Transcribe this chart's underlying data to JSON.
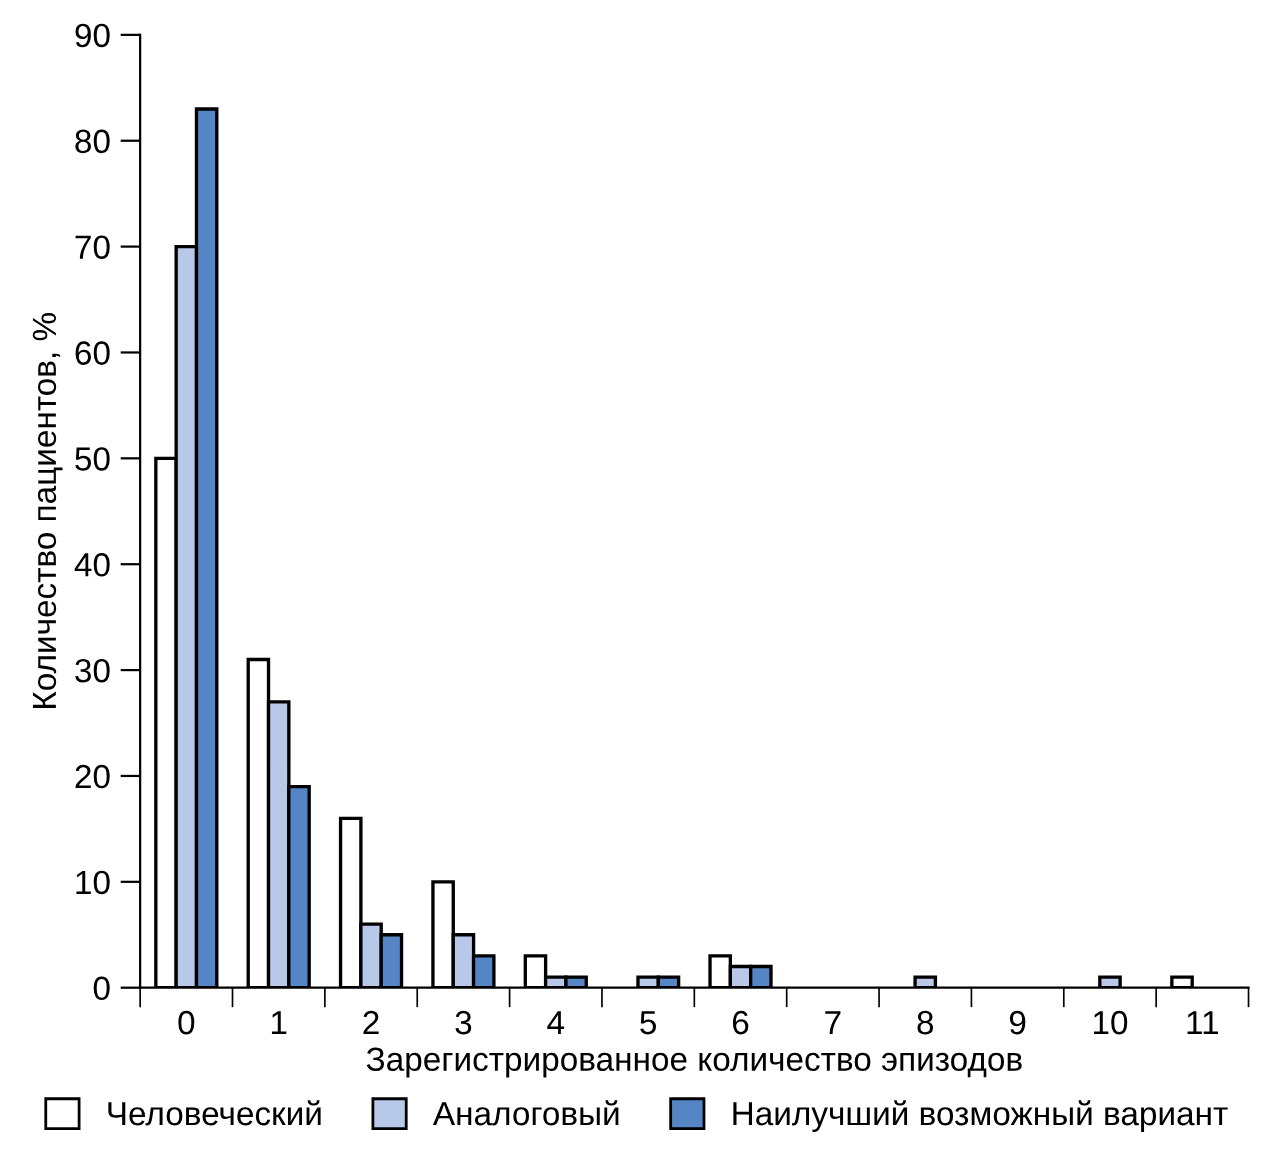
{
  "chart_data": {
    "type": "bar",
    "xlabel": "Зарегистрированное количество эпизодов",
    "ylabel": "Количество пациентов, %",
    "categories": [
      "0",
      "1",
      "2",
      "3",
      "4",
      "5",
      "6",
      "7",
      "8",
      "9",
      "10",
      "11"
    ],
    "series": [
      {
        "name": "Человеческий",
        "color": "#ffffff",
        "values": [
          50,
          31,
          16,
          10,
          3,
          null,
          3,
          null,
          null,
          null,
          null,
          1
        ]
      },
      {
        "name": "Аналоговый",
        "color": "#b8c8e8",
        "values": [
          70,
          27,
          6,
          5,
          1,
          1,
          2,
          null,
          1,
          null,
          1,
          null
        ]
      },
      {
        "name": "Наилучший возможный вариант",
        "color": "#5585c5",
        "values": [
          83,
          19,
          5,
          3,
          1,
          1,
          2,
          null,
          null,
          null,
          null,
          null
        ]
      }
    ],
    "ylim": [
      0,
      90
    ],
    "yticks": [
      0,
      10,
      20,
      30,
      40,
      50,
      60,
      70,
      80,
      90
    ],
    "grid": false,
    "legend": "bottom"
  }
}
